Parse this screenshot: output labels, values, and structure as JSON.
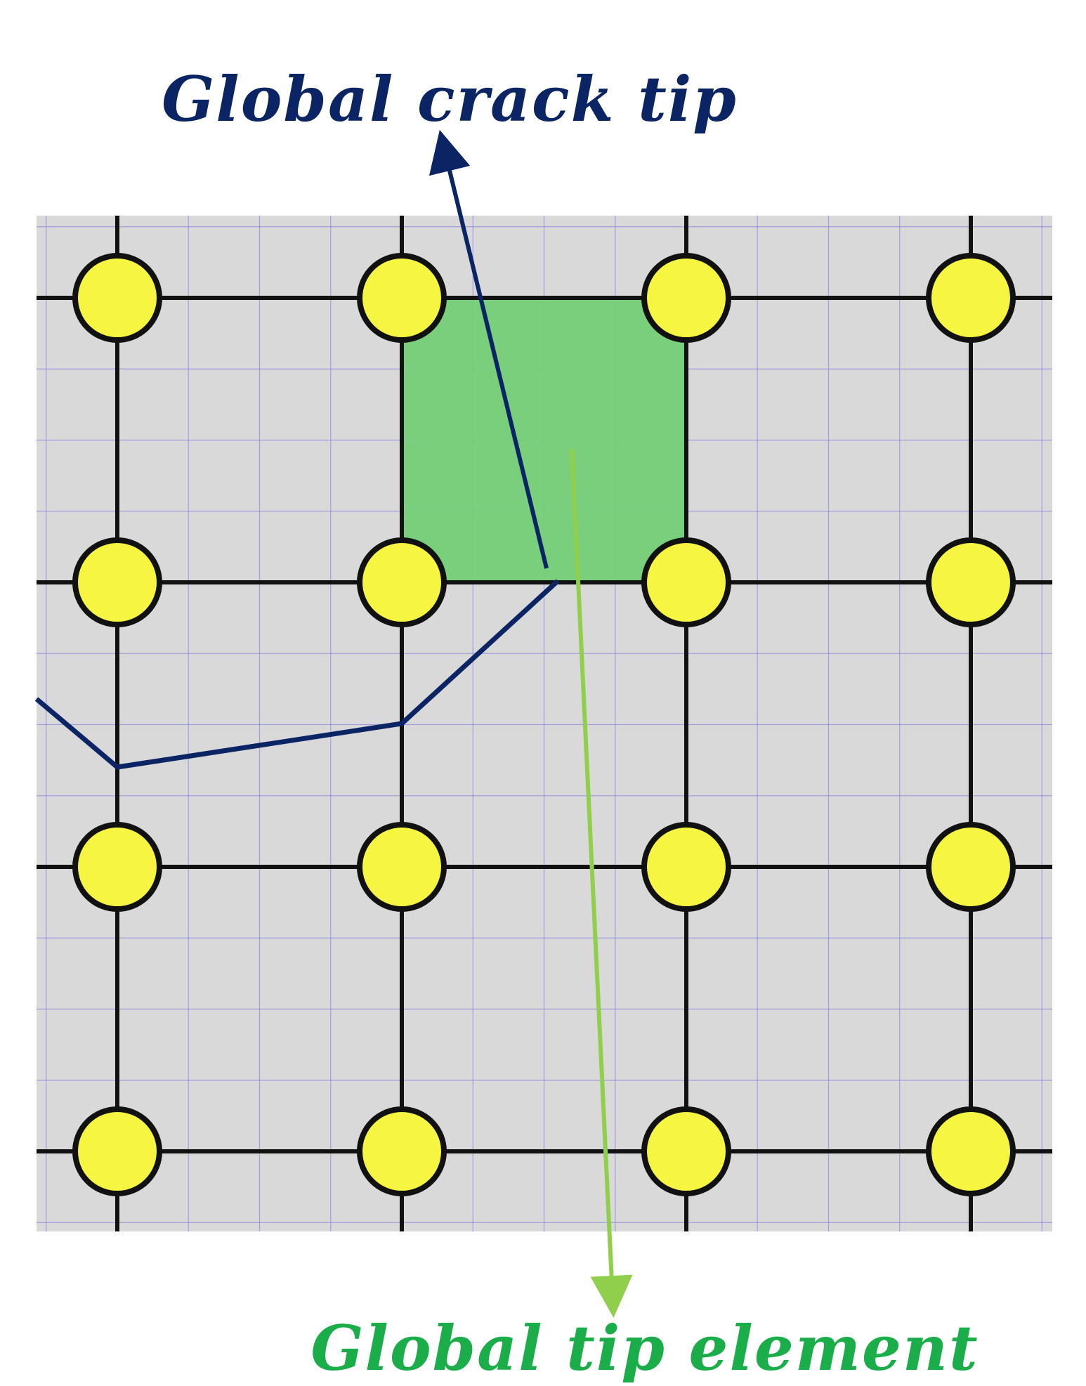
{
  "labels": {
    "crack_tip": "Global crack tip",
    "tip_element": "Global tip element"
  },
  "colors": {
    "background": "#ffffff",
    "panel": "#d9d9d9",
    "fine_grid": "#8a86e0",
    "mesh_line": "#111111",
    "node_fill": "#f5f542",
    "node_stroke": "#111111",
    "element_fill": "#74cf76",
    "element_stroke": "#1f5e1f",
    "crack": "#0b2463",
    "crack_label": "#0b2463",
    "tip_element_arrow": "#8fcf4c",
    "tip_element_label": "#1aad4a"
  },
  "mesh": {
    "node_rows": 4,
    "node_columns": 4,
    "tip_element": {
      "row": 0,
      "column": 1
    },
    "icons": {
      "node": "node-circle-icon"
    }
  }
}
